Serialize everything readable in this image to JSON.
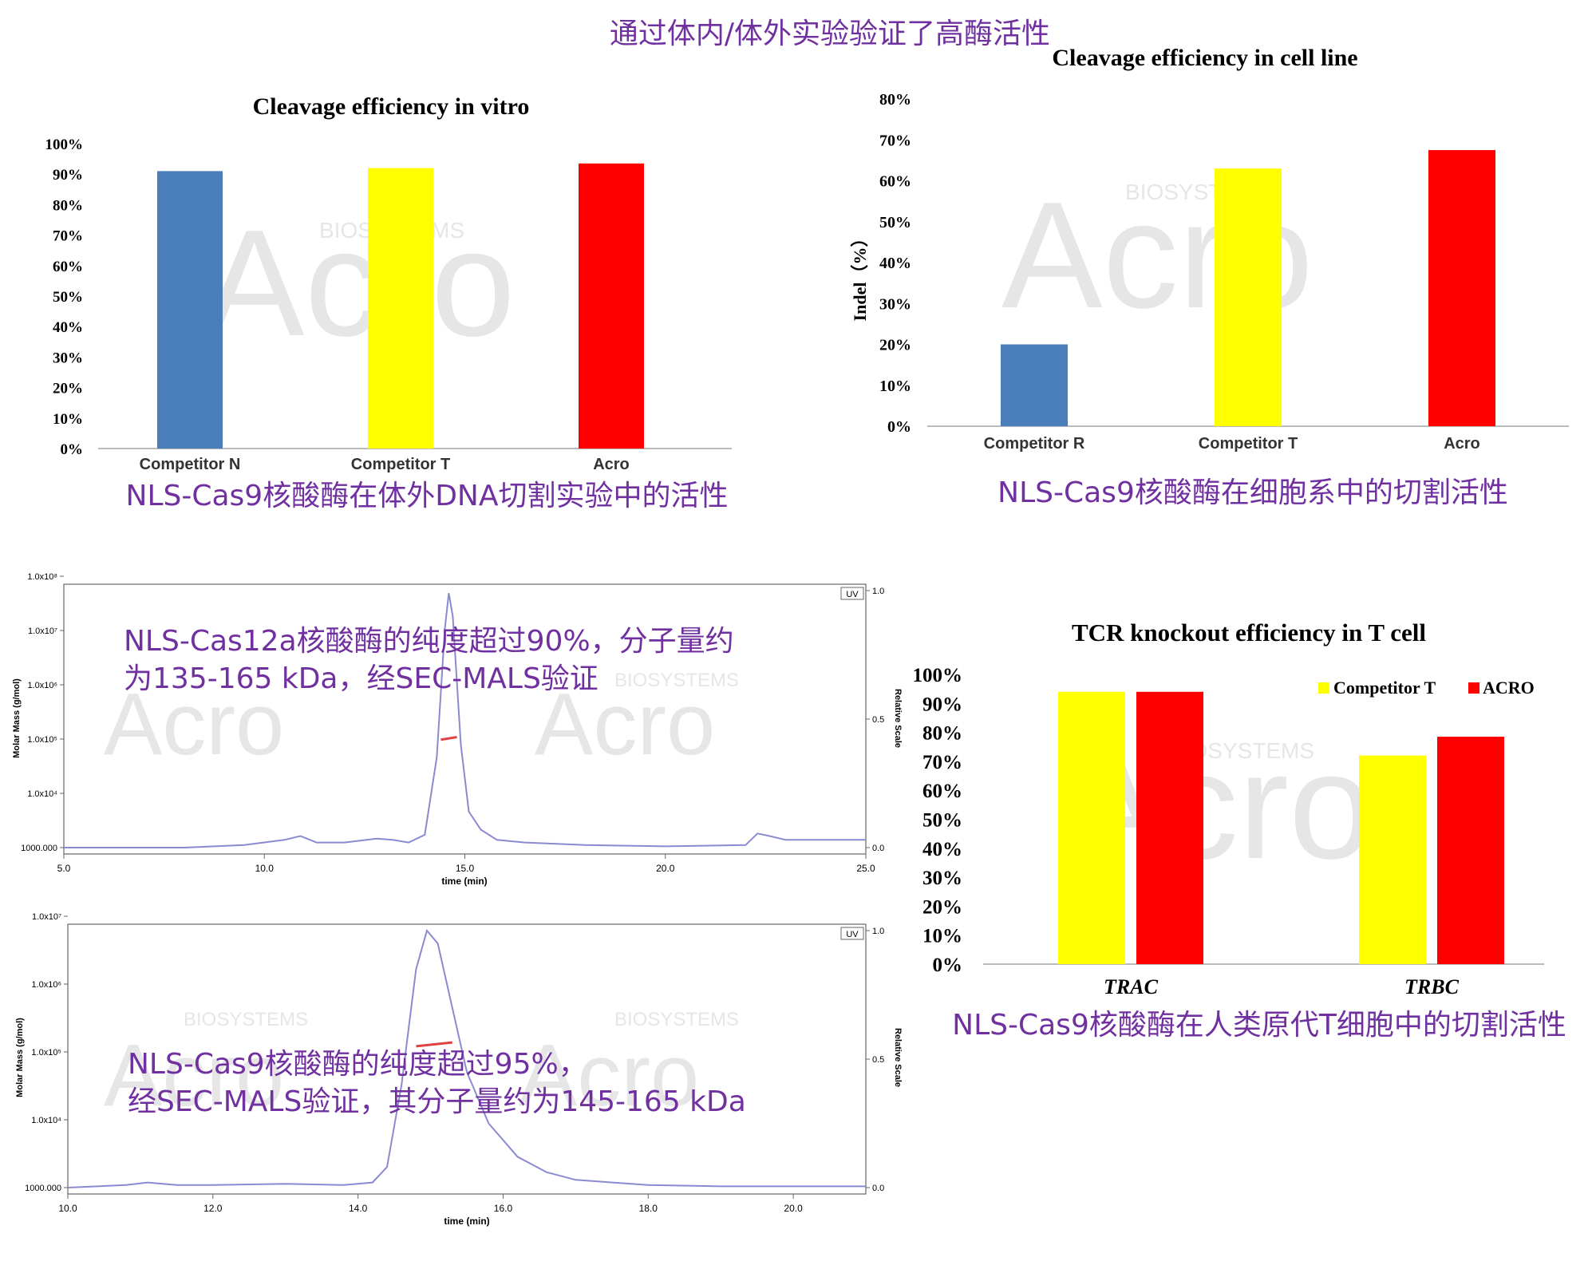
{
  "page_title": "通过体内/体外实验验证了高酶活性",
  "watermark": {
    "brand": "Acro",
    "sub": "BIOSYSTEMS"
  },
  "colors": {
    "accent": "#7030a0",
    "blue": "#4a7ebb",
    "yellow": "#ffff00",
    "red": "#ff0000",
    "trace": "#8a8ad0",
    "mass": "#e04040"
  },
  "chart_data": [
    {
      "id": "vitro",
      "type": "bar",
      "title": "Cleavage efficiency in vitro",
      "categories": [
        "Competitor N",
        "Competitor T",
        "Acro"
      ],
      "values": [
        91,
        92,
        93.5
      ],
      "colors": [
        "#4a7ebb",
        "#ffff00",
        "#ff0000"
      ],
      "ylim": [
        0,
        100
      ],
      "yticks": [
        "0%",
        "10%",
        "20%",
        "30%",
        "40%",
        "50%",
        "60%",
        "70%",
        "80%",
        "90%",
        "100%"
      ],
      "ylabel": "",
      "caption": "NLS-Cas9核酸酶在体外DNA切割实验中的活性"
    },
    {
      "id": "cellline",
      "type": "bar",
      "title": "Cleavage efficiency in cell line",
      "categories": [
        "Competitor R",
        "Competitor T",
        "Acro"
      ],
      "values": [
        20,
        63,
        67.5
      ],
      "colors": [
        "#4a7ebb",
        "#ffff00",
        "#ff0000"
      ],
      "ylim": [
        0,
        80
      ],
      "yticks": [
        "0%",
        "10%",
        "20%",
        "30%",
        "40%",
        "50%",
        "60%",
        "70%",
        "80%"
      ],
      "ylabel": "Indel（%）",
      "caption": "NLS-Cas9核酸酶在细胞系中的切割活性"
    },
    {
      "id": "tcr",
      "type": "bar",
      "title": "TCR knockout efficiency in T cell",
      "categories": [
        "TRAC",
        "TRBC"
      ],
      "series": [
        {
          "name": "Competitor T",
          "color": "#ffff00",
          "values": [
            94,
            72
          ]
        },
        {
          "name": "ACRO",
          "color": "#ff0000",
          "values": [
            94,
            78.5
          ]
        }
      ],
      "ylim": [
        0,
        100
      ],
      "yticks": [
        "0%",
        "10%",
        "20%",
        "30%",
        "40%",
        "50%",
        "60%",
        "70%",
        "80%",
        "90%",
        "100%"
      ],
      "legend": "top-right",
      "caption": "NLS-Cas9核酸酶在人类原代T细胞中的切割活性"
    },
    {
      "id": "sec1",
      "type": "line",
      "xlabel": "time (min)",
      "ylabel": "Molar Mass (g/mol)",
      "ylabel_right": "Relative Scale",
      "xlim": [
        5,
        25
      ],
      "xticks": [
        5,
        10,
        15,
        20,
        25
      ],
      "xtick_labels": [
        "5.0",
        "10.0",
        "15.0",
        "20.0",
        "25.0"
      ],
      "yticks_left": [
        "1000.000",
        "1.0x10⁴",
        "1.0x10⁵",
        "1.0x10⁶",
        "1.0x10⁷",
        "1.0x10⁸"
      ],
      "yticks_right": [
        "0.0",
        "0.5",
        "1.0"
      ],
      "legend": "UV",
      "series": [
        {
          "name": "UV",
          "x": [
            5,
            8,
            9.5,
            10.5,
            10.9,
            11.3,
            12,
            12.8,
            13.2,
            13.6,
            14.0,
            14.3,
            14.5,
            14.6,
            14.7,
            14.9,
            15.1,
            15.4,
            15.8,
            16.5,
            18,
            20,
            22,
            22.3,
            22.6,
            23,
            25
          ],
          "y": [
            0.0,
            0.0,
            0.01,
            0.03,
            0.045,
            0.02,
            0.02,
            0.035,
            0.03,
            0.02,
            0.05,
            0.35,
            0.85,
            0.99,
            0.9,
            0.4,
            0.14,
            0.07,
            0.03,
            0.02,
            0.01,
            0.005,
            0.01,
            0.055,
            0.045,
            0.03,
            0.03
          ]
        },
        {
          "name": "Molar Mass",
          "x": [
            14.4,
            14.8
          ],
          "y": [
            0.42,
            0.43
          ]
        }
      ],
      "caption": "NLS-Cas12a核酸酶的纯度超过90%，分子量约为135-165 kDa，经SEC-MALS验证",
      "caption_lines": [
        "NLS-Cas12a核酸酶的纯度超过90%，分子量约",
        "为135-165 kDa，经SEC-MALS验证"
      ]
    },
    {
      "id": "sec2",
      "type": "line",
      "xlabel": "time (min)",
      "ylabel": "Molar Mass (g/mol)",
      "ylabel_right": "Relative Scale",
      "xlim": [
        10,
        21
      ],
      "xticks": [
        10,
        12,
        14,
        16,
        18,
        20
      ],
      "xtick_labels": [
        "10.0",
        "12.0",
        "14.0",
        "16.0",
        "18.0",
        "20.0"
      ],
      "yticks_left": [
        "1000.000",
        "1.0x10⁴",
        "1.0x10⁵",
        "1.0x10⁶",
        "1.0x10⁷"
      ],
      "yticks_right": [
        "0.0",
        "0.5",
        "1.0"
      ],
      "legend": "UV",
      "series": [
        {
          "name": "UV",
          "x": [
            10,
            10.8,
            11.1,
            11.5,
            12,
            13,
            13.8,
            14.2,
            14.4,
            14.6,
            14.8,
            14.95,
            15.1,
            15.3,
            15.5,
            15.8,
            16.2,
            16.6,
            17,
            18,
            19,
            21
          ],
          "y": [
            0.0,
            0.01,
            0.02,
            0.01,
            0.01,
            0.015,
            0.01,
            0.02,
            0.08,
            0.4,
            0.85,
            1.0,
            0.95,
            0.7,
            0.45,
            0.25,
            0.12,
            0.06,
            0.03,
            0.01,
            0.005,
            0.005
          ]
        },
        {
          "name": "Molar Mass",
          "x": [
            14.8,
            15.3
          ],
          "y": [
            0.55,
            0.565
          ]
        }
      ],
      "caption": "NLS-Cas9核酸酶的纯度超过95%，经SEC-MALS验证，其分子量约为145-165 kDa",
      "caption_lines": [
        "NLS-Cas9核酸酶的纯度超过95%，",
        "经SEC-MALS验证，其分子量约为145-165 kDa"
      ]
    }
  ]
}
